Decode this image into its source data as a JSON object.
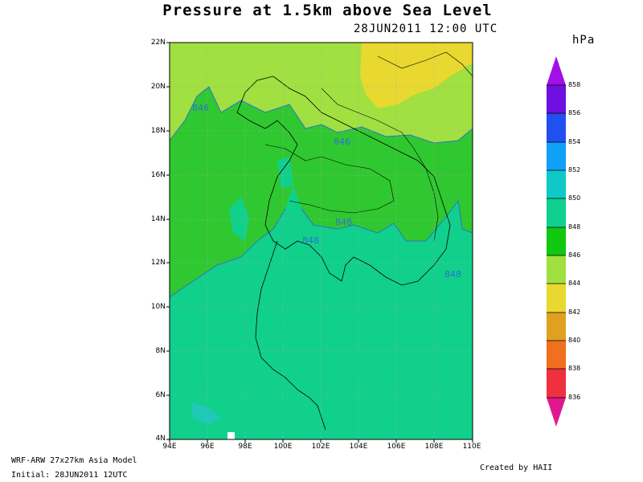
{
  "header": {
    "title": "Pressure at 1.5km above Sea Level",
    "datetime": "28JUN2011 12:00 UTC",
    "units": "hPa"
  },
  "footer": {
    "model": "WRF-ARW 27x27km Asia Model",
    "initial": "Initial: 28JUN2011 12UTC",
    "credit": "Created by HAII"
  },
  "axes": {
    "y_ticks": [
      "22N",
      "20N",
      "18N",
      "16N",
      "14N",
      "12N",
      "10N",
      "8N",
      "6N",
      "4N"
    ],
    "x_ticks": [
      "94E",
      "96E",
      "98E",
      "100E",
      "102E",
      "104E",
      "106E",
      "108E",
      "110E"
    ]
  },
  "colorbar": {
    "labels": [
      "858",
      "856",
      "854",
      "852",
      "850",
      "848",
      "846",
      "844",
      "842",
      "840",
      "838",
      "836"
    ],
    "colors": [
      "#a010e8",
      "#7010e0",
      "#2050f0",
      "#10a0f8",
      "#10c8c8",
      "#10d090",
      "#10c810",
      "#a0e040",
      "#e8d830",
      "#e0a020",
      "#f07020",
      "#f03040",
      "#e01890"
    ]
  },
  "contour_labels": [
    "846",
    "846",
    "848",
    "848",
    "848",
    "848"
  ],
  "map_colors": {
    "c844": "#a0e040",
    "c842": "#e8d830",
    "c846": "#30c830",
    "c848": "#10d08c",
    "c850": "#20c8b8",
    "contour": "#3070d0"
  }
}
